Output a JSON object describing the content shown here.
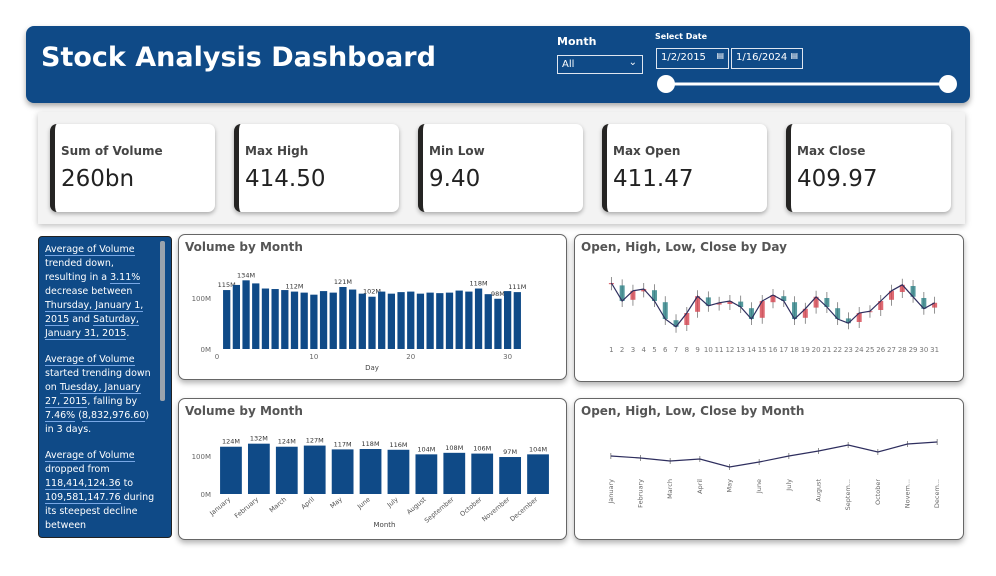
{
  "header": {
    "title": "Stock Analysis Dashboard",
    "month_slicer": {
      "label": "Month",
      "value": "All"
    },
    "date_slicer": {
      "label": "Select Date",
      "start": "1/2/2015",
      "end": "1/16/2024"
    }
  },
  "kpis": [
    {
      "label": "Sum of Volume",
      "value": "260bn"
    },
    {
      "label": "Max High",
      "value": "414.50"
    },
    {
      "label": "Min Low",
      "value": "9.40"
    },
    {
      "label": "Max Open",
      "value": "411.47"
    },
    {
      "label": "Max Close",
      "value": "409.97"
    }
  ],
  "narrative": [
    [
      {
        "text": "Average of Volume",
        "highlight": true
      },
      {
        "text": " trended down, resulting in a ",
        "highlight": false
      },
      {
        "text": "3.11%",
        "highlight": true
      },
      {
        "text": " decrease between ",
        "highlight": false
      },
      {
        "text": "Thursday, January 1, 2015",
        "highlight": true
      },
      {
        "text": " and ",
        "highlight": false
      },
      {
        "text": "Saturday, January 31, 2015",
        "highlight": true
      },
      {
        "text": ".",
        "highlight": false
      }
    ],
    [
      {
        "text": "Average of Volume",
        "highlight": true
      },
      {
        "text": " started trending down on ",
        "highlight": false
      },
      {
        "text": "Tuesday, January 27, 2015",
        "highlight": true
      },
      {
        "text": ", falling by ",
        "highlight": false
      },
      {
        "text": "7.46%",
        "highlight": true
      },
      {
        "text": " (",
        "highlight": false
      },
      {
        "text": "8,832,976.60",
        "highlight": true
      },
      {
        "text": ") in 3 days.",
        "highlight": false
      }
    ],
    [
      {
        "text": "Average of Volume",
        "highlight": true
      },
      {
        "text": " dropped from ",
        "highlight": false
      },
      {
        "text": "118,414,124.36",
        "highlight": true
      },
      {
        "text": " to ",
        "highlight": false
      },
      {
        "text": "109,581,147.76",
        "highlight": true
      },
      {
        "text": " during its steepest decline between",
        "highlight": false
      }
    ]
  ],
  "chart_data": [
    {
      "type": "bar",
      "title": "Volume by Month",
      "x_label": "Day",
      "x": [
        1,
        2,
        3,
        4,
        5,
        6,
        7,
        8,
        9,
        10,
        11,
        12,
        13,
        14,
        15,
        16,
        17,
        18,
        19,
        20,
        21,
        22,
        23,
        24,
        25,
        26,
        27,
        28,
        29,
        30,
        31
      ],
      "values": [
        115000000,
        125000000,
        134000000,
        128000000,
        118000000,
        117000000,
        115000000,
        112000000,
        110000000,
        106000000,
        113000000,
        110000000,
        121000000,
        116000000,
        108000000,
        102000000,
        112000000,
        108000000,
        111000000,
        112000000,
        108000000,
        110000000,
        109000000,
        110000000,
        114000000,
        112000000,
        118000000,
        107000000,
        98000000,
        113000000,
        111000000
      ],
      "value_labels": [
        "115M",
        null,
        "134M",
        null,
        null,
        null,
        null,
        "112M",
        null,
        null,
        null,
        null,
        "121M",
        null,
        null,
        "102M",
        null,
        null,
        null,
        null,
        null,
        null,
        null,
        null,
        null,
        null,
        "118M",
        null,
        "98M",
        null,
        "111M"
      ],
      "color": "#0f4a87",
      "xlim": [
        0,
        32
      ],
      "xticks": [
        0,
        10,
        20,
        30
      ],
      "ylim": [
        0,
        160000000
      ],
      "yticks": [
        {
          "value": 0,
          "label": "0M"
        },
        {
          "value": 100000000,
          "label": "100M"
        }
      ]
    },
    {
      "type": "candlestick",
      "title": "Open, High, Low, Close by Day",
      "categories": [
        "1",
        "2",
        "3",
        "4",
        "5",
        "6",
        "7",
        "8",
        "9",
        "10",
        "11",
        "12",
        "13",
        "14",
        "15",
        "16",
        "17",
        "18",
        "19",
        "20",
        "21",
        "22",
        "23",
        "24",
        "25",
        "26",
        "27",
        "28",
        "29",
        "30",
        "31"
      ],
      "open": [
        78,
        76,
        52,
        66,
        68,
        48,
        18,
        10,
        32,
        56,
        44,
        45,
        49,
        38,
        22,
        48,
        58,
        48,
        22,
        39,
        55,
        38,
        21,
        15,
        32,
        35,
        52,
        65,
        75,
        55,
        39
      ],
      "high": [
        90,
        86,
        77,
        80,
        78,
        58,
        28,
        40,
        68,
        66,
        57,
        60,
        59,
        48,
        60,
        70,
        68,
        58,
        47,
        67,
        65,
        48,
        31,
        40,
        43,
        60,
        77,
        87,
        85,
        65,
        57
      ],
      "low": [
        68,
        40,
        42,
        56,
        40,
        10,
        -3,
        0,
        22,
        32,
        34,
        35,
        30,
        10,
        12,
        38,
        40,
        10,
        12,
        29,
        30,
        10,
        3,
        5,
        22,
        25,
        42,
        55,
        47,
        27,
        29
      ],
      "close": [
        80,
        50,
        67,
        70,
        50,
        20,
        7,
        30,
        58,
        42,
        47,
        50,
        40,
        20,
        50,
        60,
        50,
        20,
        37,
        57,
        40,
        20,
        13,
        30,
        33,
        50,
        67,
        77,
        57,
        37,
        47
      ],
      "ylim": [
        -10,
        100
      ],
      "line_color": "#2e2e5e",
      "up_color": "#d64550",
      "down_color": "#2a7f84"
    },
    {
      "type": "bar",
      "title": "Volume by Month",
      "x_label": "Month",
      "categories": [
        "January",
        "February",
        "March",
        "April",
        "May",
        "June",
        "July",
        "August",
        "September",
        "October",
        "November",
        "December"
      ],
      "values": [
        124000000,
        132000000,
        124000000,
        127000000,
        117000000,
        118000000,
        116000000,
        104000000,
        108000000,
        106000000,
        97000000,
        104000000
      ],
      "value_labels": [
        "124M",
        "132M",
        "124M",
        "127M",
        "117M",
        "118M",
        "116M",
        "104M",
        "108M",
        "106M",
        "97M",
        "104M"
      ],
      "color": "#0f4a87",
      "ylim": [
        0,
        160000000
      ],
      "yticks": [
        {
          "value": 0,
          "label": "0M"
        },
        {
          "value": 100000000,
          "label": "100M"
        }
      ]
    },
    {
      "type": "line",
      "title": "Open, High, Low, Close by Month",
      "categories": [
        "January",
        "February",
        "March",
        "April",
        "May",
        "June",
        "July",
        "August",
        "Septem...",
        "October",
        "Novem...",
        "Decem..."
      ],
      "values": [
        25,
        23,
        20,
        22,
        14,
        19,
        25,
        30,
        36,
        29,
        37,
        39
      ],
      "ylim": [
        0,
        50
      ],
      "color": "#2e2e5e"
    }
  ]
}
